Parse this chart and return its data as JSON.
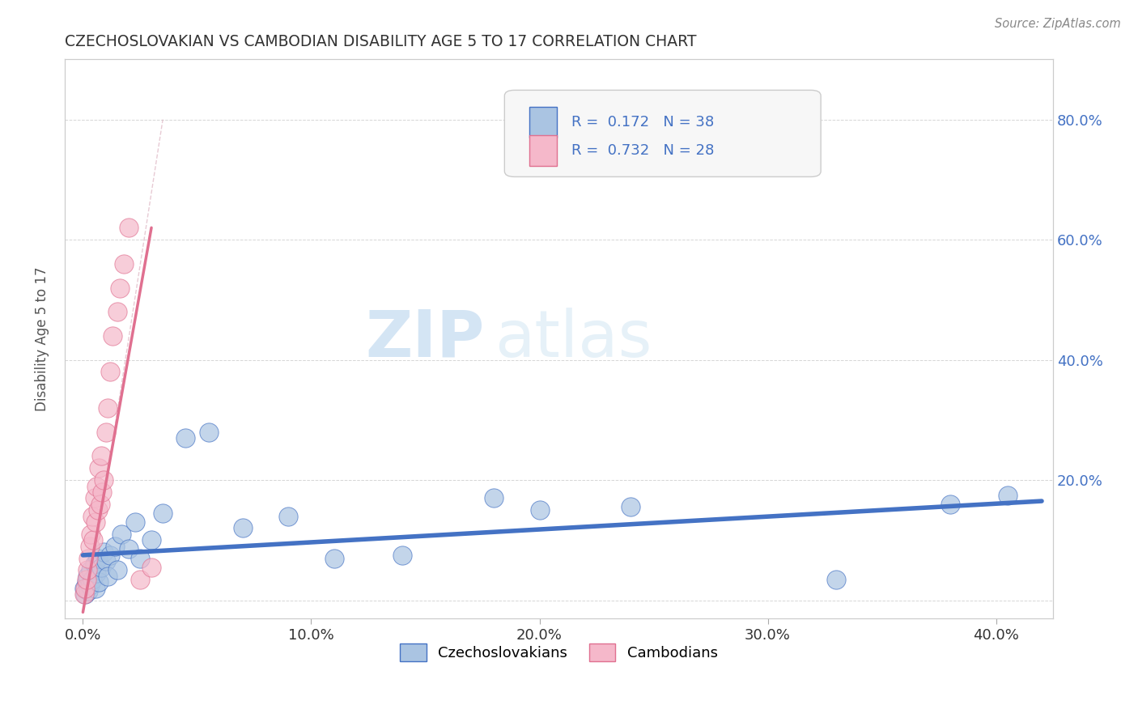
{
  "title": "CZECHOSLOVAKIAN VS CAMBODIAN DISABILITY AGE 5 TO 17 CORRELATION CHART",
  "source": "Source: ZipAtlas.com",
  "ylabel": "Disability Age 5 to 17",
  "x_tick_labels": [
    "0.0%",
    "10.0%",
    "20.0%",
    "30.0%",
    "40.0%"
  ],
  "x_tick_values": [
    0.0,
    10.0,
    20.0,
    30.0,
    40.0
  ],
  "y_tick_values": [
    0.0,
    20.0,
    40.0,
    60.0,
    80.0
  ],
  "xlim": [
    -0.8,
    42.5
  ],
  "ylim": [
    -3.0,
    90.0
  ],
  "czech_color": "#aac4e2",
  "cambodian_color": "#f5b8ca",
  "czech_line_color": "#4472c4",
  "cambodian_line_color": "#e07090",
  "czech_r": 0.172,
  "czech_n": 38,
  "cambodian_r": 0.732,
  "cambodian_n": 28,
  "legend_label1": "Czechoslovakians",
  "legend_label2": "Cambodians",
  "watermark_zip": "ZIP",
  "watermark_atlas": "atlas",
  "czech_x": [
    0.05,
    0.1,
    0.15,
    0.2,
    0.25,
    0.3,
    0.35,
    0.4,
    0.5,
    0.55,
    0.6,
    0.65,
    0.7,
    0.8,
    0.9,
    1.0,
    1.1,
    1.2,
    1.4,
    1.5,
    1.7,
    2.0,
    2.3,
    2.5,
    3.0,
    3.5,
    4.5,
    5.5,
    7.0,
    9.0,
    11.0,
    14.0,
    18.0,
    20.0,
    24.0,
    33.0,
    38.0,
    40.5
  ],
  "czech_y": [
    2.0,
    1.0,
    3.0,
    4.0,
    1.5,
    2.5,
    5.0,
    3.5,
    6.0,
    2.0,
    4.5,
    7.0,
    3.0,
    5.5,
    8.0,
    6.5,
    4.0,
    7.5,
    9.0,
    5.0,
    11.0,
    8.5,
    13.0,
    7.0,
    10.0,
    14.5,
    27.0,
    28.0,
    12.0,
    14.0,
    7.0,
    7.5,
    17.0,
    15.0,
    15.5,
    3.5,
    16.0,
    17.5
  ],
  "cambodian_x": [
    0.05,
    0.1,
    0.15,
    0.2,
    0.25,
    0.3,
    0.35,
    0.4,
    0.45,
    0.5,
    0.55,
    0.6,
    0.65,
    0.7,
    0.75,
    0.8,
    0.85,
    0.9,
    1.0,
    1.1,
    1.2,
    1.3,
    1.5,
    1.6,
    1.8,
    2.0,
    2.5,
    3.0
  ],
  "cambodian_y": [
    1.0,
    2.0,
    3.5,
    5.0,
    7.0,
    9.0,
    11.0,
    14.0,
    10.0,
    17.0,
    13.0,
    19.0,
    15.0,
    22.0,
    16.0,
    24.0,
    18.0,
    20.0,
    28.0,
    32.0,
    38.0,
    44.0,
    48.0,
    52.0,
    56.0,
    62.0,
    3.5,
    5.5
  ],
  "czech_line_x": [
    0.0,
    42.0
  ],
  "czech_line_y": [
    7.5,
    16.5
  ],
  "cambodian_line_x": [
    0.0,
    3.0
  ],
  "cambodian_line_y": [
    -2.0,
    62.0
  ],
  "guide_line_x": [
    0.3,
    3.5
  ],
  "guide_line_y": [
    2.0,
    80.0
  ]
}
